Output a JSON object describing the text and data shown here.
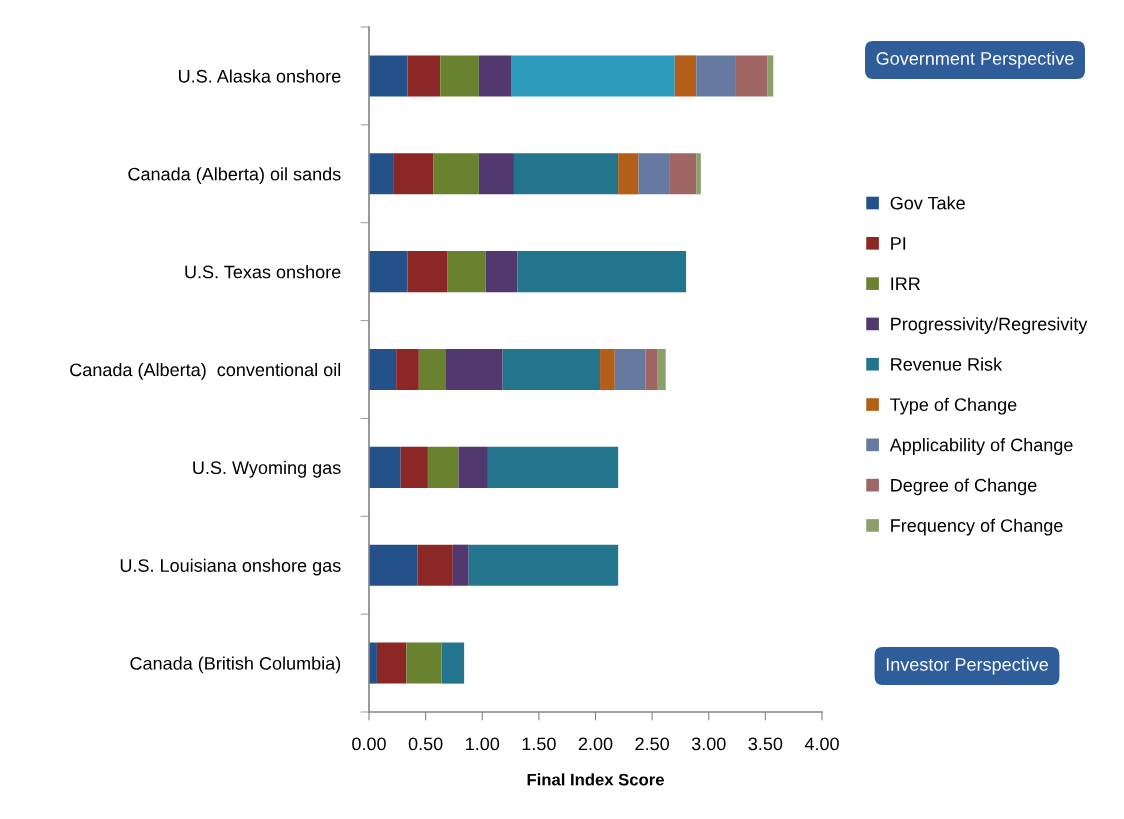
{
  "chart_data": {
    "type": "bar",
    "orientation": "horizontal",
    "stacked": true,
    "categories": [
      "U.S. Alaska onshore",
      "Canada (Alberta) oil sands",
      "U.S. Texas onshore",
      "Canada (Alberta)  conventional oil",
      "U.S. Wyoming gas",
      "U.S. Louisiana onshore gas",
      "Canada (British Columbia)"
    ],
    "series": [
      {
        "name": "Gov Take",
        "color": "#25518a",
        "values": [
          0.34,
          0.22,
          0.34,
          0.24,
          0.28,
          0.43,
          0.07
        ]
      },
      {
        "name": "PI",
        "color": "#8b2725",
        "values": [
          0.29,
          0.35,
          0.35,
          0.2,
          0.24,
          0.31,
          0.26
        ]
      },
      {
        "name": "IRR",
        "color": "#68822f",
        "values": [
          0.34,
          0.4,
          0.34,
          0.24,
          0.27,
          null,
          0.31
        ]
      },
      {
        "name": "Progressivity/Regresivity",
        "color": "#51386e",
        "values": [
          0.29,
          0.31,
          0.28,
          0.5,
          0.26,
          0.14,
          null
        ]
      },
      {
        "name": "Revenue Risk",
        "color": "#22758c",
        "colors": [
          "#2e9bbd",
          "#22758c",
          "#22758c",
          "#22758c",
          "#22758c",
          "#22758c",
          "#22758c"
        ],
        "values": [
          1.44,
          0.92,
          1.49,
          0.86,
          1.15,
          1.32,
          0.2
        ]
      },
      {
        "name": "Type of Change",
        "color": "#b35e19",
        "values": [
          0.19,
          0.18,
          null,
          0.13,
          null,
          null,
          null
        ]
      },
      {
        "name": "Applicability of Change",
        "color": "#6679a0",
        "values": [
          0.35,
          0.27,
          null,
          0.27,
          null,
          null,
          null
        ]
      },
      {
        "name": "Degree of Change",
        "color": "#a06664",
        "values": [
          0.28,
          0.24,
          null,
          0.11,
          null,
          null,
          null
        ]
      },
      {
        "name": "Frequency of Change",
        "color": "#8aa06b",
        "values": [
          0.05,
          0.04,
          null,
          0.07,
          null,
          null,
          null
        ]
      }
    ],
    "xlabel": "Final Index Score",
    "xlim": [
      0,
      4
    ],
    "xticks": [
      {
        "value": 0,
        "label": "0.00"
      },
      {
        "value": 0.5,
        "label": "0.50"
      },
      {
        "value": 1,
        "label": "1.00"
      },
      {
        "value": 1.5,
        "label": "1.50"
      },
      {
        "value": 2,
        "label": "2.00"
      },
      {
        "value": 2.5,
        "label": "2.50"
      },
      {
        "value": 3,
        "label": "3.00"
      },
      {
        "value": 3.5,
        "label": "3.50"
      },
      {
        "value": 4,
        "label": "4.00"
      }
    ],
    "legend": "right",
    "annotations": [
      "Government Perspective",
      "Investor Perspective"
    ]
  }
}
